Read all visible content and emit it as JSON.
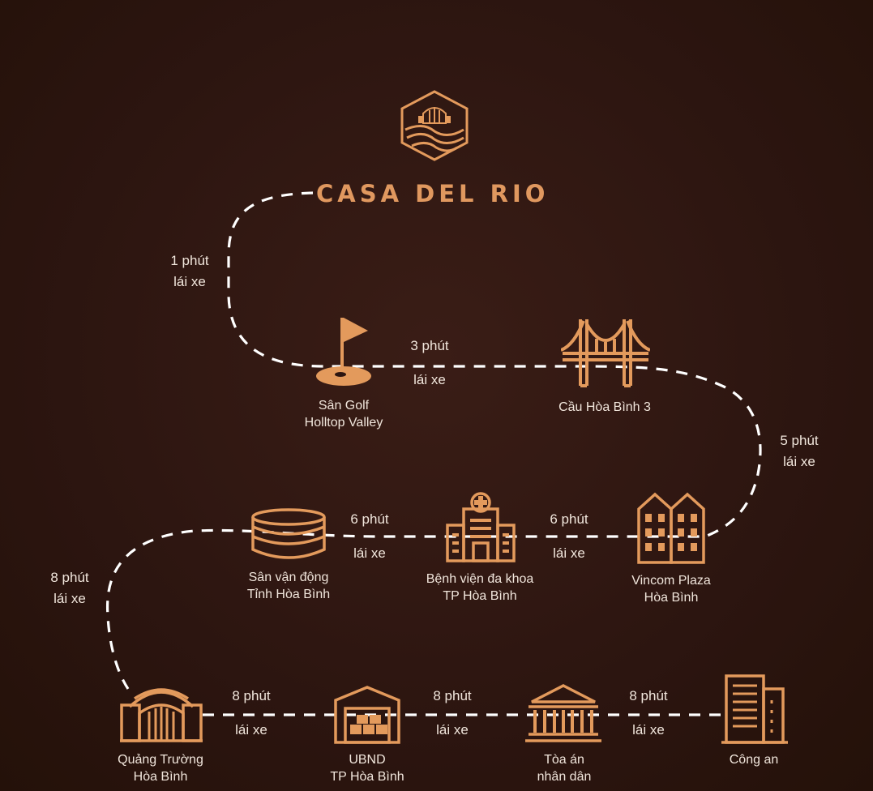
{
  "brand": {
    "name": "CASA DEL RIO"
  },
  "colors": {
    "background": "#2c1510",
    "accent": "#e39a5c",
    "text": "#f1e6dc",
    "path": "#ffffff"
  },
  "places": [
    {
      "id": "golf",
      "icon": "golf-flag-icon",
      "line1": "Sân Golf",
      "line2": "Holltop Valley"
    },
    {
      "id": "bridge",
      "icon": "bridge-icon",
      "line1": "Cầu Hòa Bình 3",
      "line2": ""
    },
    {
      "id": "vincom",
      "icon": "buildings-icon",
      "line1": "Vincom Plaza",
      "line2": "Hòa Bình"
    },
    {
      "id": "hospital",
      "icon": "hospital-icon",
      "line1": "Bệnh viện đa khoa",
      "line2": "TP Hòa Bình"
    },
    {
      "id": "stadium",
      "icon": "stadium-icon",
      "line1": "Sân vận động",
      "line2": "Tỉnh Hòa Bình"
    },
    {
      "id": "square",
      "icon": "arch-gate-icon",
      "line1": "Quảng Trường",
      "line2": "Hòa Bình"
    },
    {
      "id": "ubnd",
      "icon": "warehouse-icon",
      "line1": "UBND",
      "line2": "TP Hòa Bình"
    },
    {
      "id": "court",
      "icon": "courthouse-icon",
      "line1": "Tòa án",
      "line2": "nhân dân"
    },
    {
      "id": "police",
      "icon": "office-tower-icon",
      "line1": "Công an",
      "line2": ""
    }
  ],
  "travel_times": [
    {
      "from": "CASA DEL RIO",
      "to": "Sân Golf",
      "time": "1 phút",
      "mode": "lái xe"
    },
    {
      "from": "Sân Golf",
      "to": "Cầu Hòa Bình 3",
      "time": "3 phút",
      "mode": "lái xe"
    },
    {
      "from": "Cầu Hòa Bình 3",
      "to": "Vincom Plaza",
      "time": "5 phút",
      "mode": "lái xe"
    },
    {
      "from": "Vincom Plaza",
      "to": "Bệnh viện đa khoa",
      "time": "6 phút",
      "mode": "lái xe"
    },
    {
      "from": "Bệnh viện đa khoa",
      "to": "Sân vận động",
      "time": "6 phút",
      "mode": "lái xe"
    },
    {
      "from": "Sân vận động",
      "to": "Quảng Trường",
      "time": "8 phút",
      "mode": "lái xe"
    },
    {
      "from": "Quảng Trường",
      "to": "UBND",
      "time": "8 phút",
      "mode": "lái xe"
    },
    {
      "from": "UBND",
      "to": "Tòa án",
      "time": "8 phút",
      "mode": "lái xe"
    },
    {
      "from": "Tòa án",
      "to": "Công an",
      "time": "8 phút",
      "mode": "lái xe"
    }
  ]
}
